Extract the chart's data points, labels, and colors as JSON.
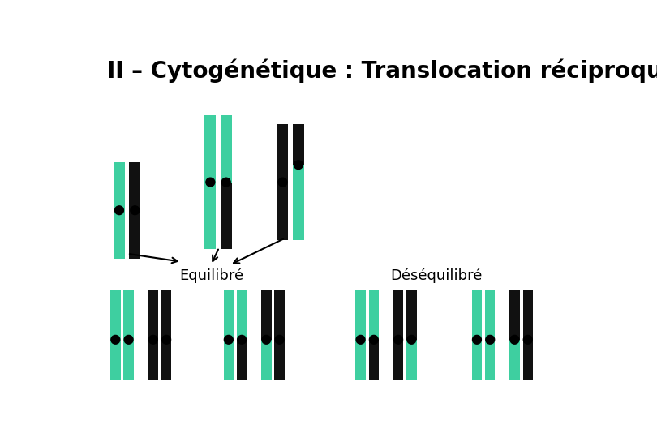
{
  "title": "II – Cytogénétique : Translocation réciproque",
  "title_fontsize": 20,
  "bg_color": "#ffffff",
  "teal": "#3ecfa0",
  "black": "#111111",
  "label_equilibre": "Equilibré",
  "label_desequilibre": "Déséquilibré",
  "label_fontsize": 13
}
